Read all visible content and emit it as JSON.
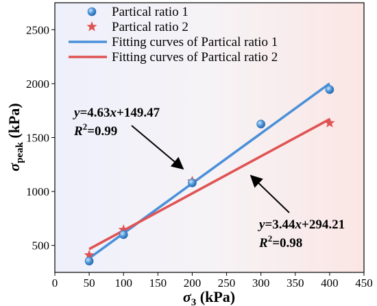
{
  "chart_data": {
    "type": "scatter",
    "xlabel": {
      "symbol": "σ",
      "sub": "3",
      "unit": " (kPa)"
    },
    "ylabel": {
      "symbol": "σ",
      "sub": "peak",
      "unit": " (kPa)"
    },
    "xlim": [
      0,
      450
    ],
    "ylim": [
      250,
      2750
    ],
    "xticks": [
      0,
      50,
      100,
      150,
      200,
      250,
      300,
      350,
      400,
      450
    ],
    "yticks": [
      500,
      1000,
      1500,
      2000,
      2500
    ],
    "grid": false,
    "legend_position": "top-left",
    "series": [
      {
        "name": "Partical ratio 1",
        "marker": "circle",
        "color": "#4a90d9",
        "x": [
          50,
          100,
          200,
          300,
          400
        ],
        "y": [
          355,
          600,
          1080,
          1625,
          1945
        ]
      },
      {
        "name": "Partical ratio 2",
        "marker": "star",
        "color": "#e05353",
        "x": [
          50,
          100,
          200,
          400
        ],
        "y": [
          410,
          645,
          1095,
          1635
        ]
      }
    ],
    "fits": [
      {
        "name": "Fitting curves of Partical ratio 1",
        "color": "#4a90d9",
        "slope": 4.63,
        "intercept": 149.47,
        "x_range": [
          50,
          400
        ],
        "equation": {
          "prefix": "y",
          "mid": "=4.63",
          "x": "x",
          "rest": "+149.47",
          "r2_label": "R",
          "r2_sup": "2",
          "r2_value": "=0.99"
        }
      },
      {
        "name": "Fitting curves of Partical ratio 2",
        "color": "#e05353",
        "slope": 3.44,
        "intercept": 294.21,
        "x_range": [
          50,
          400
        ],
        "equation": {
          "prefix": "y",
          "mid": "=3.44",
          "x": "x",
          "rest": "+294.21",
          "r2_label": "R",
          "r2_sup": "2",
          "r2_value": "=0.98"
        }
      }
    ]
  }
}
